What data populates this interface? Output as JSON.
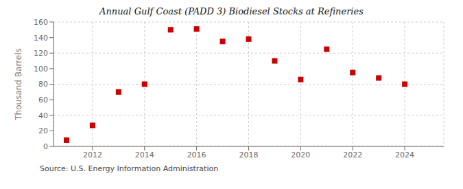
{
  "chart_data": {
    "type": "scatter",
    "title": "Annual Gulf Coast (PADD 3) Biodiesel Stocks at Refineries",
    "ylabel": "Thousand Barrels",
    "annotation": "Source: U.S. Energy Information Administration",
    "x": [
      2011,
      2012,
      2013,
      2014,
      2015,
      2016,
      2017,
      2018,
      2019,
      2020,
      2021,
      2022,
      2023,
      2024
    ],
    "values": [
      8,
      27,
      70,
      80,
      150,
      151,
      135,
      138,
      110,
      86,
      125,
      95,
      88,
      80
    ],
    "color": "#cc0000",
    "marker": "square",
    "xlim": [
      2010.5,
      2025.5
    ],
    "ylim": [
      0,
      160
    ],
    "xticks": [
      2012,
      2014,
      2016,
      2018,
      2020,
      2022,
      2024
    ],
    "yticks": [
      0,
      20,
      40,
      60,
      80,
      100,
      120,
      140,
      160
    ],
    "grid": true
  }
}
